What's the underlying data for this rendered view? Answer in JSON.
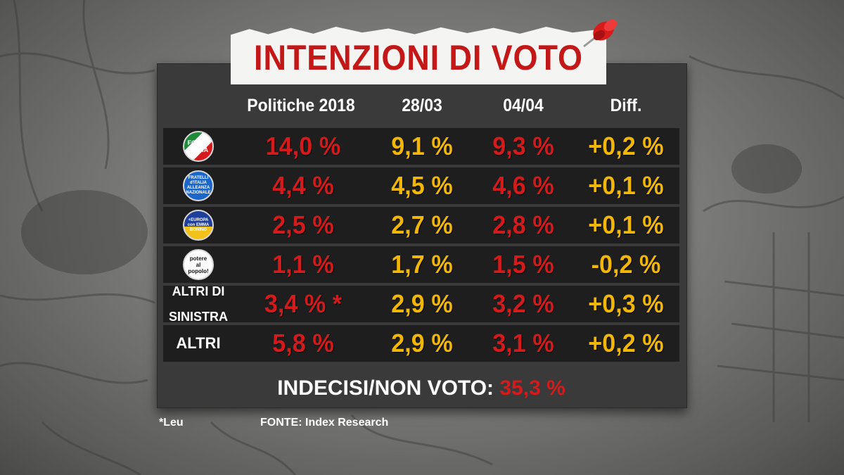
{
  "title": "INTENZIONI DI VOTO",
  "columns": [
    "Politiche 2018",
    "28/03",
    "04/04",
    "Diff."
  ],
  "rows": [
    {
      "party": "Forza Italia",
      "logo": "forza-italia-logo",
      "logo_text": [
        "FORZA",
        "ITALIA"
      ],
      "values": [
        "14,0 %",
        "9,1 %",
        "9,3 %",
        "+0,2 %"
      ]
    },
    {
      "party": "Fratelli d'Italia",
      "logo": "fratelli-ditalia-logo",
      "logo_text": [
        "FRATELLI",
        "d'ITALIA",
        "ALLEANZA",
        "NAZIONALE"
      ],
      "values": [
        "4,4 %",
        "4,5 %",
        "4,6 %",
        "+0,1 %"
      ]
    },
    {
      "party": "+Europa",
      "logo": "piu-europa-logo",
      "logo_text": [
        "+EUROPA",
        "con EMMA",
        "BONINO"
      ],
      "values": [
        "2,5 %",
        "2,7 %",
        "2,8 %",
        "+0,1 %"
      ]
    },
    {
      "party": "Potere al Popolo",
      "logo": "potere-al-popolo-logo",
      "logo_text": [
        "potere",
        "al",
        "popolo!"
      ],
      "values": [
        "1,1 %",
        "1,7 %",
        "1,5 %",
        "-0,2 %"
      ]
    },
    {
      "party": "ALTRI DI SINISTRA",
      "label_lines": [
        "ALTRI DI",
        "SINISTRA"
      ],
      "values": [
        "3,4 % *",
        "2,9 %",
        "3,2 %",
        "+0,3 %"
      ]
    },
    {
      "party": "ALTRI",
      "label_lines": [
        "ALTRI"
      ],
      "values": [
        "5,8 %",
        "2,9 %",
        "3,1 %",
        "+0,2 %"
      ]
    }
  ],
  "summary": {
    "label": "INDECISI/NON VOTO:",
    "value": "35,3 %"
  },
  "footnote": "*Leu",
  "source": "FONTE:  Index Research",
  "colors": {
    "title_red": "#c41818",
    "value_red": "#d41a1a",
    "value_yellow": "#f2b705",
    "board": "#3a3a3a",
    "row_band": "#1e1e1e"
  },
  "chart_data": {
    "type": "table",
    "title": "INTENZIONI DI VOTO",
    "columns": [
      "Politiche 2018",
      "28/03",
      "04/04",
      "Diff."
    ],
    "row_labels": [
      "Forza Italia",
      "Fratelli d'Italia",
      "+Europa",
      "Potere al Popolo",
      "ALTRI DI SINISTRA",
      "ALTRI"
    ],
    "values": [
      [
        14.0,
        9.1,
        9.3,
        0.2
      ],
      [
        4.4,
        4.5,
        4.6,
        0.1
      ],
      [
        2.5,
        2.7,
        2.8,
        0.1
      ],
      [
        1.1,
        1.7,
        1.5,
        -0.2
      ],
      [
        3.4,
        2.9,
        3.2,
        0.3
      ],
      [
        5.8,
        2.9,
        3.1,
        0.2
      ]
    ],
    "undecided": 35.3
  }
}
